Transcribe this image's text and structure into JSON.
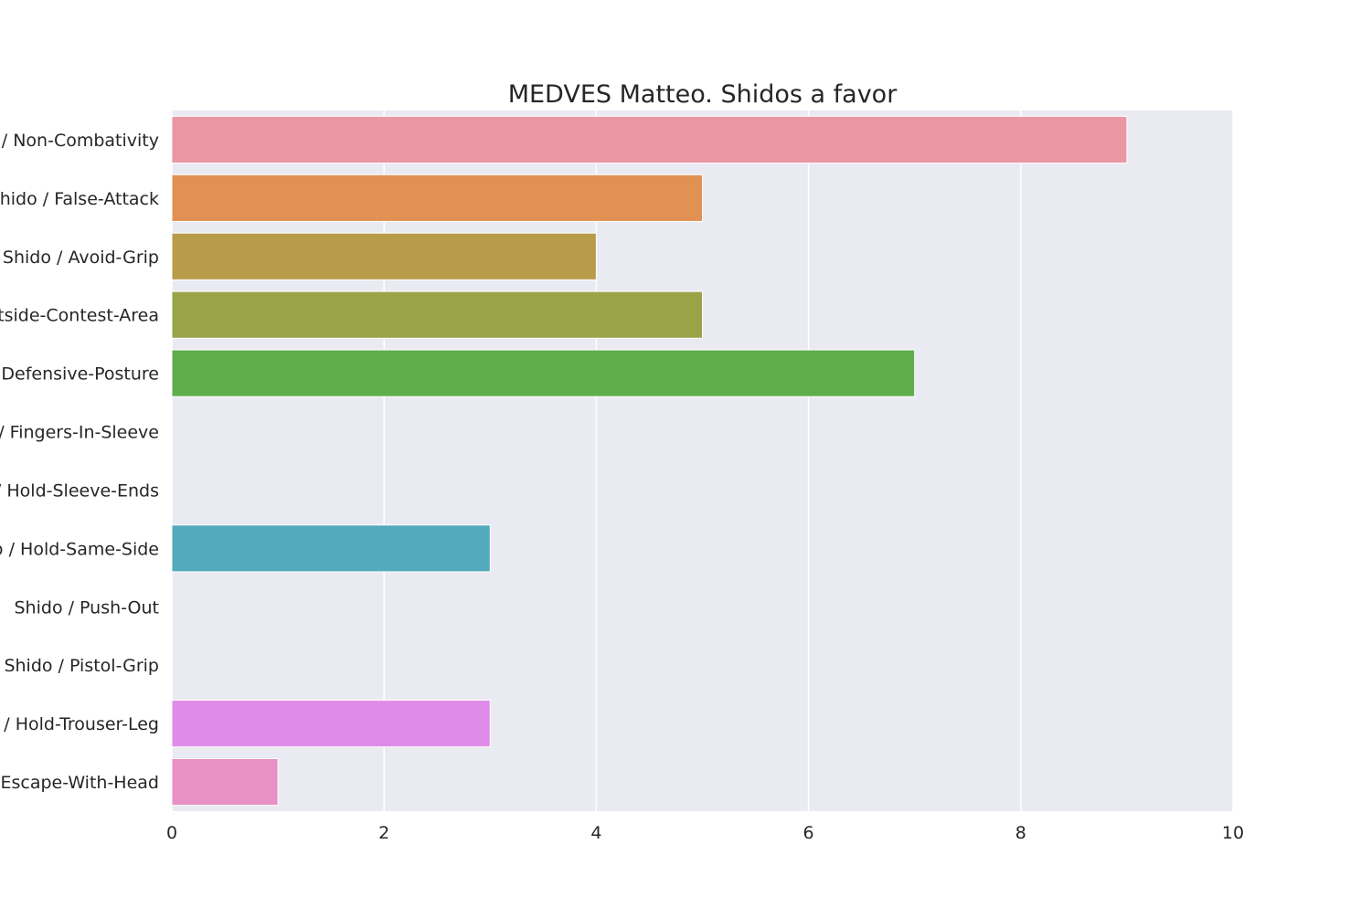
{
  "chart_data": {
    "type": "bar",
    "orientation": "horizontal",
    "title": "MEDVES Matteo. Shidos a favor",
    "xlabel": "",
    "ylabel": "",
    "xlim": [
      0,
      10
    ],
    "xticks": [
      0,
      2,
      4,
      6,
      8,
      10
    ],
    "grid": true,
    "categories": [
      "Shido / Non-Combativity",
      "Shido / False-Attack",
      "Shido / Avoid-Grip",
      "Shido / Outside-Contest-Area",
      "Shido / Defensive-Posture",
      "Shido / Fingers-In-Sleeve",
      "Shido / Hold-Sleeve-Ends",
      "Shido / Hold-Same-Side",
      "Shido / Push-Out",
      "Shido / Pistol-Grip",
      "Shido / Hold-Trouser-Leg",
      "Shido / Escape-With-Head"
    ],
    "values": [
      9,
      5,
      4,
      5,
      7,
      0,
      0,
      3,
      0,
      0,
      3,
      1
    ],
    "colors": [
      "#ea96a3",
      "#e19153",
      "#b89c49",
      "#9aa347",
      "#5fae4b",
      "#54ad8c",
      "#56ab9f",
      "#52aabc",
      "#5aa4e0",
      "#a49cee",
      "#df8ce8",
      "#e891c6"
    ],
    "plot_background": "#eaeaf2",
    "grid_color": "#ffffff"
  }
}
